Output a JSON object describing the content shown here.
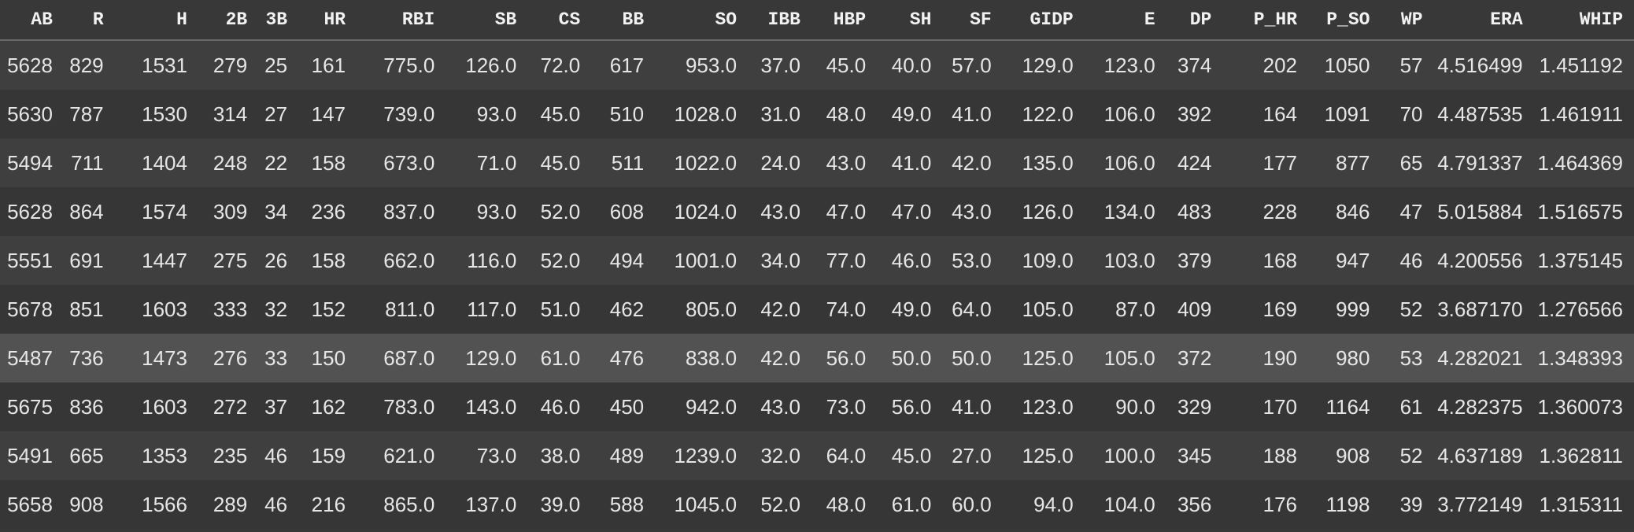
{
  "table": {
    "columns": [
      "AB",
      "R",
      "H",
      "2B",
      "3B",
      "HR",
      "RBI",
      "SB",
      "CS",
      "BB",
      "SO",
      "IBB",
      "HBP",
      "SH",
      "SF",
      "GIDP",
      "E",
      "DP",
      "P_HR",
      "P_SO",
      "WP",
      "ERA",
      "WHIP"
    ],
    "rows": [
      [
        "5628",
        "829",
        "1531",
        "279",
        "25",
        "161",
        "775.0",
        "126.0",
        "72.0",
        "617",
        "953.0",
        "37.0",
        "45.0",
        "40.0",
        "57.0",
        "129.0",
        "123.0",
        "374",
        "202",
        "1050",
        "57",
        "4.516499",
        "1.451192"
      ],
      [
        "5630",
        "787",
        "1530",
        "314",
        "27",
        "147",
        "739.0",
        "93.0",
        "45.0",
        "510",
        "1028.0",
        "31.0",
        "48.0",
        "49.0",
        "41.0",
        "122.0",
        "106.0",
        "392",
        "164",
        "1091",
        "70",
        "4.487535",
        "1.461911"
      ],
      [
        "5494",
        "711",
        "1404",
        "248",
        "22",
        "158",
        "673.0",
        "71.0",
        "45.0",
        "511",
        "1022.0",
        "24.0",
        "43.0",
        "41.0",
        "42.0",
        "135.0",
        "106.0",
        "424",
        "177",
        "877",
        "65",
        "4.791337",
        "1.464369"
      ],
      [
        "5628",
        "864",
        "1574",
        "309",
        "34",
        "236",
        "837.0",
        "93.0",
        "52.0",
        "608",
        "1024.0",
        "43.0",
        "47.0",
        "47.0",
        "43.0",
        "126.0",
        "134.0",
        "483",
        "228",
        "846",
        "47",
        "5.015884",
        "1.516575"
      ],
      [
        "5551",
        "691",
        "1447",
        "275",
        "26",
        "158",
        "662.0",
        "116.0",
        "52.0",
        "494",
        "1001.0",
        "34.0",
        "77.0",
        "46.0",
        "53.0",
        "109.0",
        "103.0",
        "379",
        "168",
        "947",
        "46",
        "4.200556",
        "1.375145"
      ],
      [
        "5678",
        "851",
        "1603",
        "333",
        "32",
        "152",
        "811.0",
        "117.0",
        "51.0",
        "462",
        "805.0",
        "42.0",
        "74.0",
        "49.0",
        "64.0",
        "105.0",
        "87.0",
        "409",
        "169",
        "999",
        "52",
        "3.687170",
        "1.276566"
      ],
      [
        "5487",
        "736",
        "1473",
        "276",
        "33",
        "150",
        "687.0",
        "129.0",
        "61.0",
        "476",
        "838.0",
        "42.0",
        "56.0",
        "50.0",
        "50.0",
        "125.0",
        "105.0",
        "372",
        "190",
        "980",
        "53",
        "4.282021",
        "1.348393"
      ],
      [
        "5675",
        "836",
        "1603",
        "272",
        "37",
        "162",
        "783.0",
        "143.0",
        "46.0",
        "450",
        "942.0",
        "43.0",
        "73.0",
        "56.0",
        "41.0",
        "123.0",
        "90.0",
        "329",
        "170",
        "1164",
        "61",
        "4.282375",
        "1.360073"
      ],
      [
        "5491",
        "665",
        "1353",
        "235",
        "46",
        "159",
        "621.0",
        "73.0",
        "38.0",
        "489",
        "1239.0",
        "32.0",
        "64.0",
        "45.0",
        "27.0",
        "125.0",
        "100.0",
        "345",
        "188",
        "908",
        "52",
        "4.637189",
        "1.362811"
      ],
      [
        "5658",
        "908",
        "1566",
        "289",
        "46",
        "216",
        "865.0",
        "137.0",
        "39.0",
        "588",
        "1045.0",
        "52.0",
        "48.0",
        "61.0",
        "60.0",
        "94.0",
        "104.0",
        "356",
        "176",
        "1198",
        "39",
        "3.772149",
        "1.315311"
      ]
    ],
    "hovered_row": 6
  },
  "colors": {
    "background": "#383838",
    "row_odd": "#3f3f3f",
    "row_even": "#363636",
    "row_hover": "#525252",
    "header_border": "#6a6a6a",
    "text": "#e6e6e6"
  }
}
